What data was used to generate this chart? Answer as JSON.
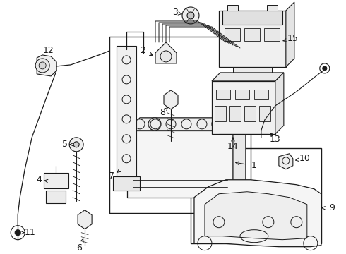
{
  "bg_color": "#ffffff",
  "line_color": "#1a1a1a",
  "fig_width": 4.9,
  "fig_height": 3.6,
  "dpi": 100,
  "lw": 0.8,
  "label_fs": 9
}
